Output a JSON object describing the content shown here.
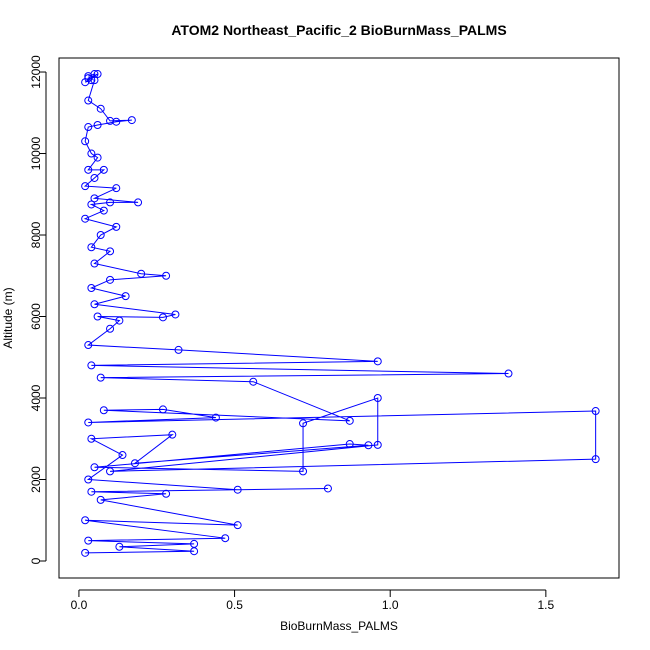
{
  "chart_data": {
    "type": "line",
    "title": "ATOM2 Northeast_Pacific_2 BioBurnMass_PALMS",
    "x_label": "BioBurnMass_PALMS",
    "y_label": "Altitude (m)",
    "color": "#0000ff",
    "xlim": [
      -0.064,
      1.735
    ],
    "ylim": [
      -417,
      12344
    ],
    "xticks": [
      {
        "value": 0,
        "label": "0.0"
      },
      {
        "value": 0.5,
        "label": "0.5"
      },
      {
        "value": 1,
        "label": "1.0"
      },
      {
        "value": 1.5,
        "label": "1.5"
      }
    ],
    "yticks": [
      0,
      2000,
      4000,
      6000,
      8000,
      10000,
      12000
    ],
    "x": [
      0.03,
      0.05,
      0.04,
      0.02,
      0.06,
      0.03,
      0.05,
      0.03,
      0.07,
      0.1,
      0.17,
      0.12,
      0.06,
      0.03,
      0.02,
      0.04,
      0.06,
      0.03,
      0.08,
      0.05,
      0.02,
      0.12,
      0.05,
      0.19,
      0.1,
      0.04,
      0.08,
      0.02,
      0.12,
      0.07,
      0.04,
      0.1,
      0.05,
      0.2,
      0.28,
      0.1,
      0.04,
      0.15,
      0.05,
      0.31,
      0.27,
      0.06,
      0.13,
      0.1,
      0.03,
      0.32,
      0.96,
      0.04,
      1.38,
      0.07,
      0.56,
      0.87,
      0.08,
      0.27,
      0.44,
      0.03,
      1.66,
      1.66,
      0.1,
      0.96,
      0.96,
      0.72,
      0.72,
      0.05,
      0.87,
      0.93,
      0.18,
      0.3,
      0.04,
      0.14,
      0.03,
      0.51,
      0.8,
      0.04,
      0.28,
      0.07,
      0.51,
      0.02,
      0.47,
      0.03,
      0.37,
      0.13,
      0.37,
      0.02
    ],
    "values": [
      11900,
      11950,
      11800,
      11750,
      11950,
      11850,
      11800,
      11300,
      11100,
      10800,
      10820,
      10780,
      10700,
      10650,
      10300,
      10000,
      9900,
      9600,
      9600,
      9400,
      9200,
      9150,
      8900,
      8800,
      8800,
      8750,
      8600,
      8400,
      8200,
      8000,
      7700,
      7600,
      7300,
      7050,
      7000,
      6900,
      6700,
      6500,
      6300,
      6050,
      5980,
      6000,
      5900,
      5700,
      5300,
      5180,
      4900,
      4800,
      4600,
      4500,
      4400,
      3440,
      3700,
      3720,
      3520,
      3400,
      3680,
      2500,
      2200,
      2850,
      4000,
      3380,
      2200,
      2300,
      2870,
      2840,
      2400,
      3100,
      3000,
      2600,
      2000,
      1750,
      1780,
      1700,
      1650,
      1500,
      880,
      1000,
      560,
      500,
      420,
      350,
      240,
      200
    ]
  }
}
